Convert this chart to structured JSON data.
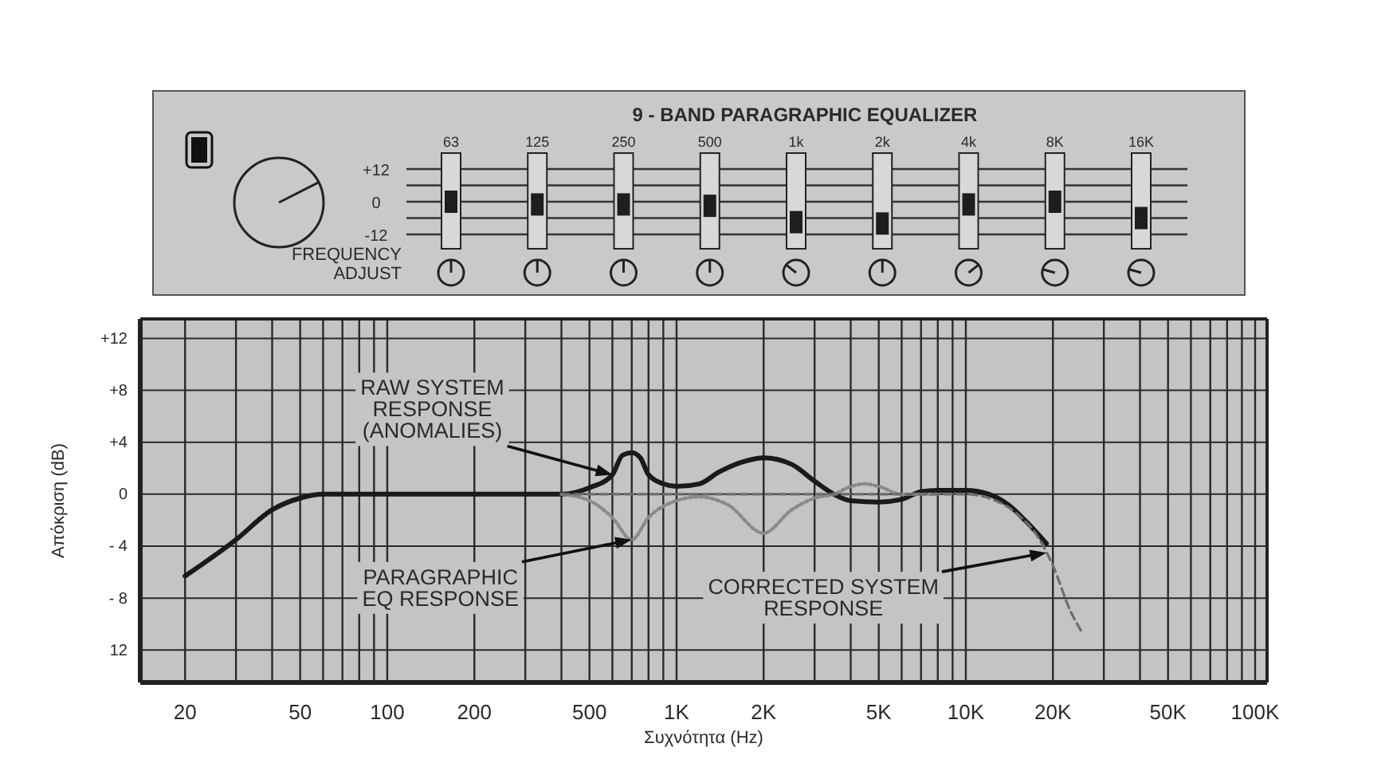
{
  "chart_data": [
    {
      "type": "scatter",
      "title": "9 - BAND PARAGRAPHIC EQUALIZER",
      "categories": [
        "63",
        "125",
        "250",
        "500",
        "1k",
        "2k",
        "4k",
        "8K",
        "16K"
      ],
      "values": [
        0,
        -1,
        -1,
        -1.5,
        -7.5,
        -8,
        -1,
        0,
        -6
      ],
      "color": "#1e1e1e",
      "marker": "square",
      "ylim": [
        -12,
        12
      ],
      "yticks": [
        {
          "value": 12,
          "label": "+12"
        },
        {
          "value": 6,
          "label": null
        },
        0,
        {
          "value": -6,
          "label": null
        },
        {
          "value": -12,
          "label": "-12"
        }
      ],
      "grid": "y",
      "annotations": [
        "FREQUENCY\nADJUST"
      ]
    },
    {
      "type": "line",
      "xlabel": "Συχνότητα (Hz)",
      "ylabel": "Απόκριση (dB)",
      "log": "x",
      "xlim": [
        14,
        110000
      ],
      "ylim": [
        -14.5,
        13.5
      ],
      "xticks": [
        20,
        {
          "value": 30,
          "label": null
        },
        {
          "value": 40,
          "label": null
        },
        50,
        {
          "value": 60,
          "label": null
        },
        {
          "value": 70,
          "label": null
        },
        {
          "value": 80,
          "label": null
        },
        {
          "value": 90,
          "label": null
        },
        100,
        200,
        {
          "value": 300,
          "label": null
        },
        {
          "value": 400,
          "label": null
        },
        500,
        {
          "value": 600,
          "label": null
        },
        {
          "value": 700,
          "label": null
        },
        {
          "value": 800,
          "label": null
        },
        {
          "value": 900,
          "label": null
        },
        {
          "value": 1000,
          "label": "1K"
        },
        {
          "value": 2000,
          "label": "2K"
        },
        {
          "value": 3000,
          "label": null
        },
        {
          "value": 4000,
          "label": null
        },
        {
          "value": 5000,
          "label": "5K"
        },
        {
          "value": 6000,
          "label": null
        },
        {
          "value": 7000,
          "label": null
        },
        {
          "value": 8000,
          "label": null
        },
        {
          "value": 9000,
          "label": null
        },
        {
          "value": 10000,
          "label": "10K"
        },
        {
          "value": 20000,
          "label": "20K"
        },
        {
          "value": 30000,
          "label": null
        },
        {
          "value": 40000,
          "label": null
        },
        {
          "value": 50000,
          "label": "50K"
        },
        {
          "value": 60000,
          "label": null
        },
        {
          "value": 70000,
          "label": null
        },
        {
          "value": 80000,
          "label": null
        },
        {
          "value": 90000,
          "label": null
        },
        {
          "value": 100000,
          "label": "100K"
        }
      ],
      "yticks": [
        {
          "value": 12,
          "label": "+12"
        },
        {
          "value": 8,
          "label": "+8"
        },
        {
          "value": 4,
          "label": "+4"
        },
        0,
        {
          "value": -4,
          "label": "- 4"
        },
        {
          "value": -8,
          "label": "- 8"
        },
        {
          "value": -12,
          "label": "12"
        }
      ],
      "grid": true,
      "series": [
        {
          "color": "#1a1a1a",
          "line_style": "solid",
          "x": [
            20,
            30,
            40,
            50,
            60,
            100,
            200,
            400,
            500,
            600,
            650,
            700,
            750,
            800,
            900,
            1000,
            1200,
            1400,
            1700,
            2000,
            2500,
            3000,
            3500,
            4000,
            5000,
            6000,
            7000,
            8000,
            10000,
            12000,
            14000,
            16000,
            19000
          ],
          "values": [
            -6.3,
            -3.5,
            -1.2,
            -0.3,
            0,
            0,
            0,
            0,
            0.5,
            1.5,
            3,
            3.2,
            2.8,
            1.5,
            0.8,
            0.6,
            0.8,
            1.7,
            2.5,
            2.8,
            2.3,
            1,
            0,
            -0.5,
            -0.6,
            -0.4,
            0.2,
            0.3,
            0.3,
            0,
            -0.8,
            -2,
            -3.8
          ]
        },
        {
          "color": "#8a8a8a",
          "line_style": "dotted",
          "x": [
            400,
            500,
            600,
            700,
            800,
            1000,
            1200,
            1500,
            2000,
            2500,
            3000,
            3500,
            4000,
            4500,
            5000,
            6000,
            8000
          ],
          "values": [
            0,
            -0.5,
            -1.8,
            -3.5,
            -1.8,
            -0.5,
            -0.2,
            -0.8,
            -3,
            -1.2,
            -0.3,
            0,
            0.6,
            0.8,
            0.6,
            0,
            0
          ]
        },
        {
          "color": "#6e6e6e",
          "line_style": "dashed",
          "x": [
            400,
            1000,
            2000,
            5000,
            10000,
            12000,
            15000,
            18000,
            20000,
            23000,
            25000
          ],
          "values": [
            0,
            0,
            0,
            0,
            0,
            -0.3,
            -1.5,
            -3.5,
            -5.5,
            -9,
            -10.5
          ]
        }
      ],
      "annotations": [
        {
          "text": "RAW SYSTEM\nRESPONSE\n(ANOMALIES)",
          "x": 600,
          "y": 1.5
        },
        {
          "text": "PARAGRAPHIC\nEQ RESPONSE",
          "x": 700,
          "y": -3.5
        },
        {
          "text": "CORRECTED SYSTEM\nRESPONSE",
          "x": 19000,
          "y": -4.5
        }
      ]
    }
  ]
}
